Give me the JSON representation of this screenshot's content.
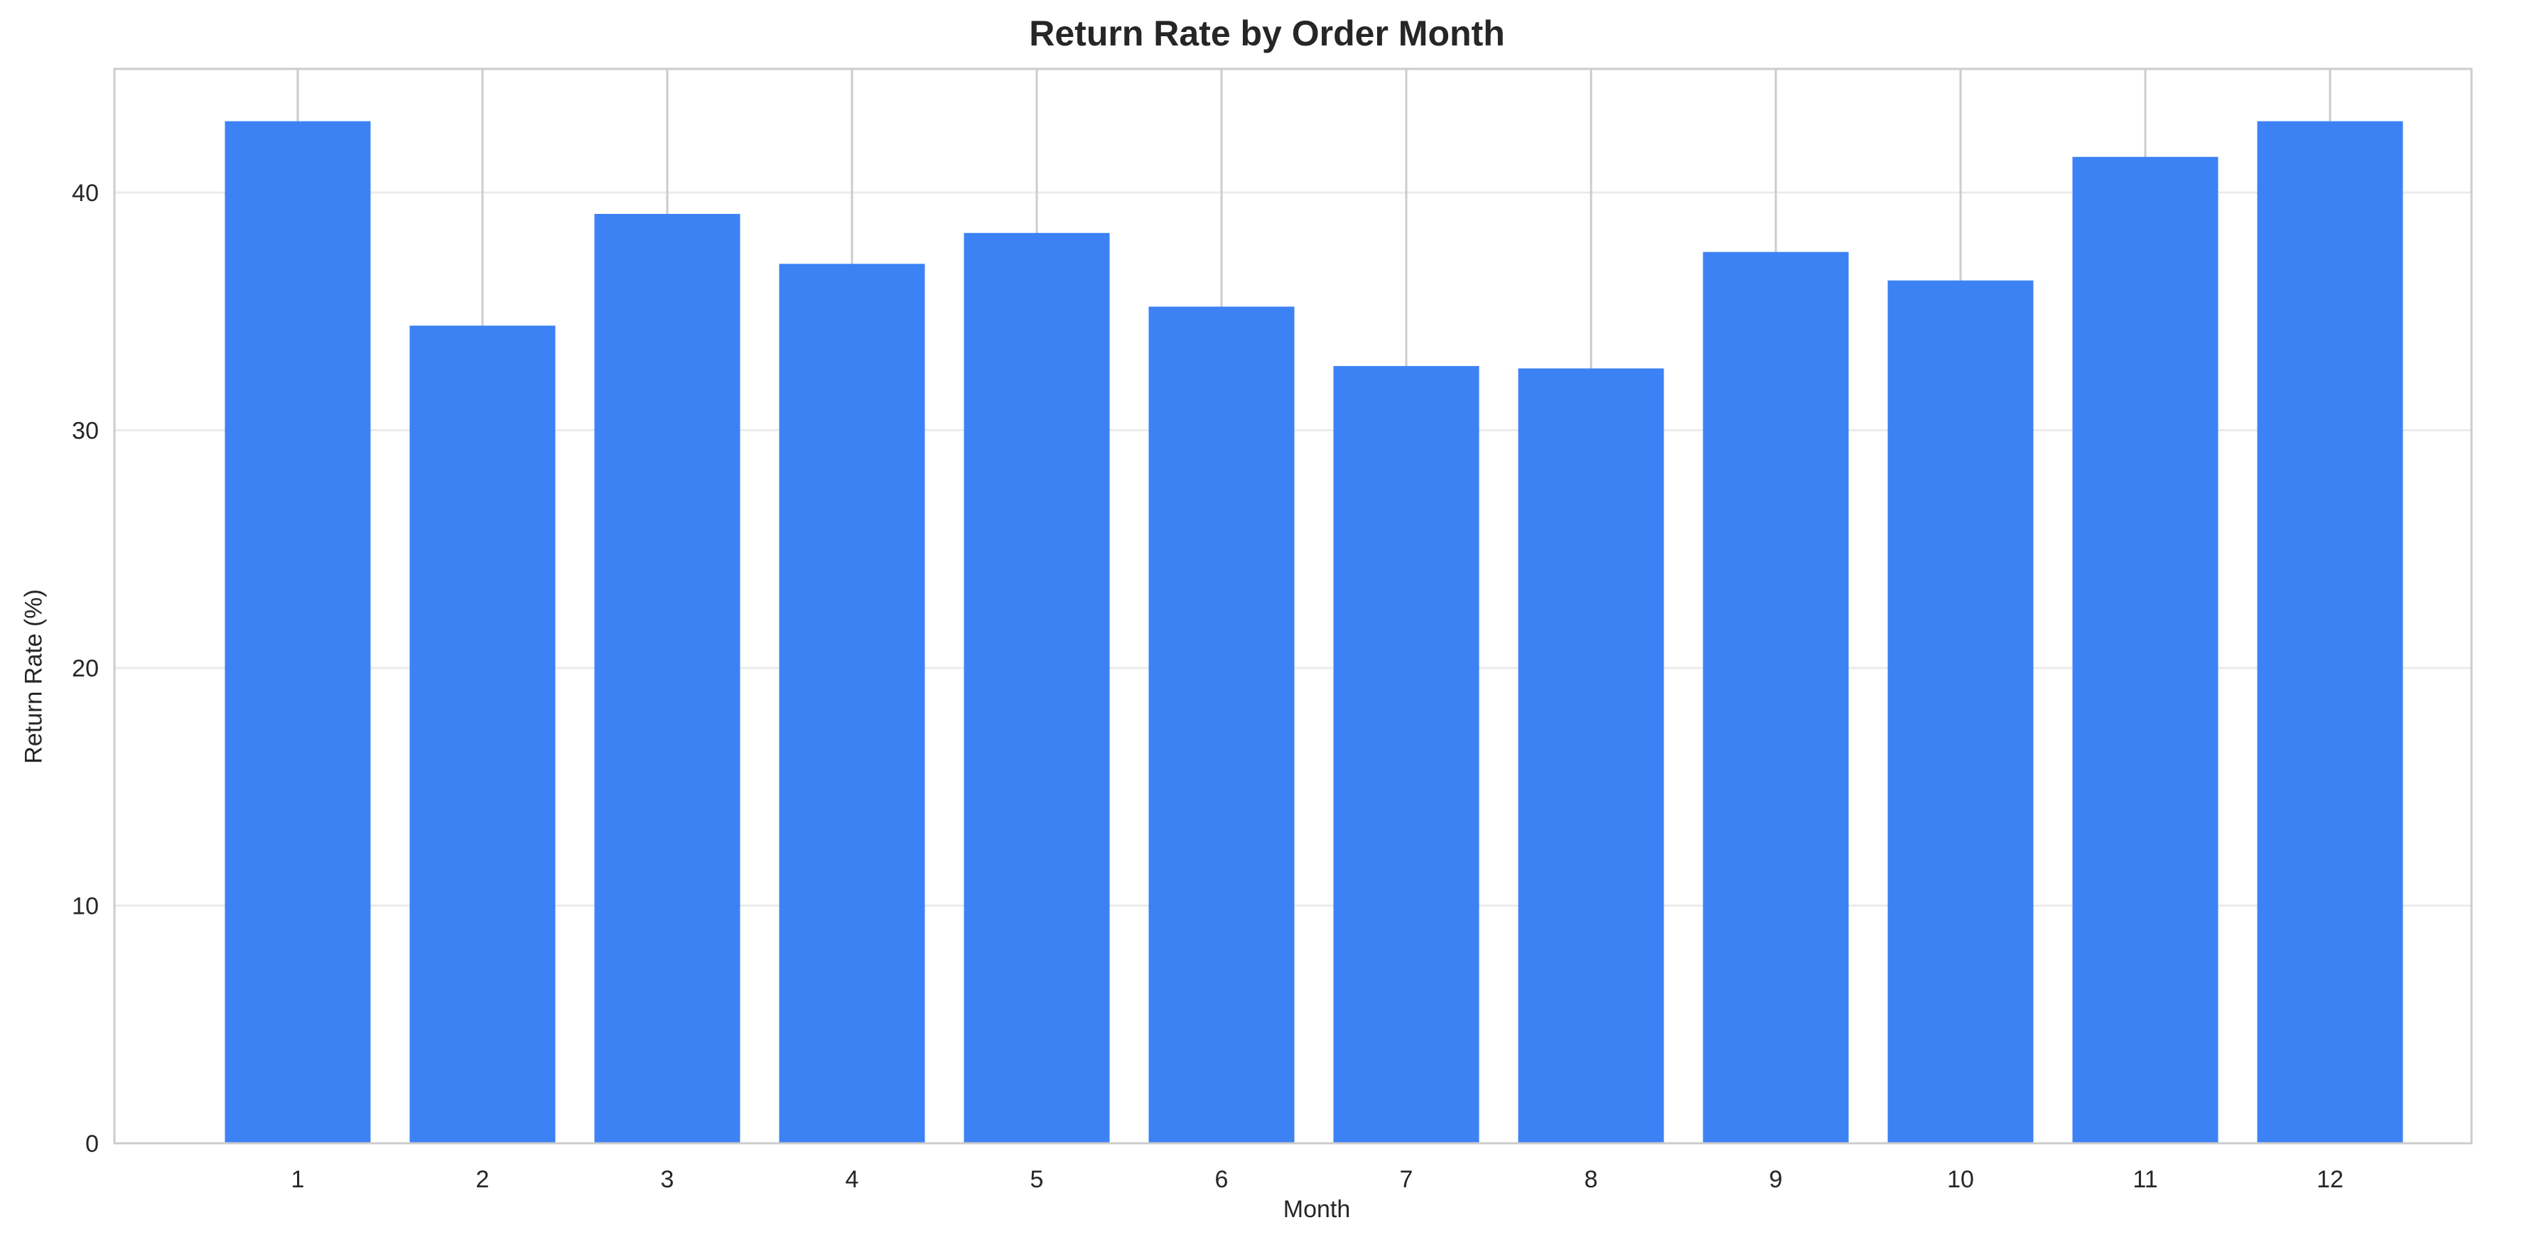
{
  "chart_data": {
    "type": "bar",
    "title": "Return Rate by Order Month",
    "xlabel": "Month",
    "ylabel": "Return Rate (%)",
    "categories": [
      "1",
      "2",
      "3",
      "4",
      "5",
      "6",
      "7",
      "8",
      "9",
      "10",
      "11",
      "12"
    ],
    "values": [
      43.0,
      34.4,
      39.1,
      37.0,
      38.3,
      35.2,
      32.7,
      32.6,
      37.5,
      36.3,
      41.5,
      43.0
    ],
    "ylim": [
      0,
      45.2
    ],
    "yticks": [
      0,
      10,
      20,
      30,
      40
    ],
    "grid": true,
    "colors": {
      "bar": "#3c82f5",
      "grid": "#ebebeb",
      "vertical_grid": "#cccccc",
      "spine": "#cccccc",
      "text": "#262626"
    }
  }
}
